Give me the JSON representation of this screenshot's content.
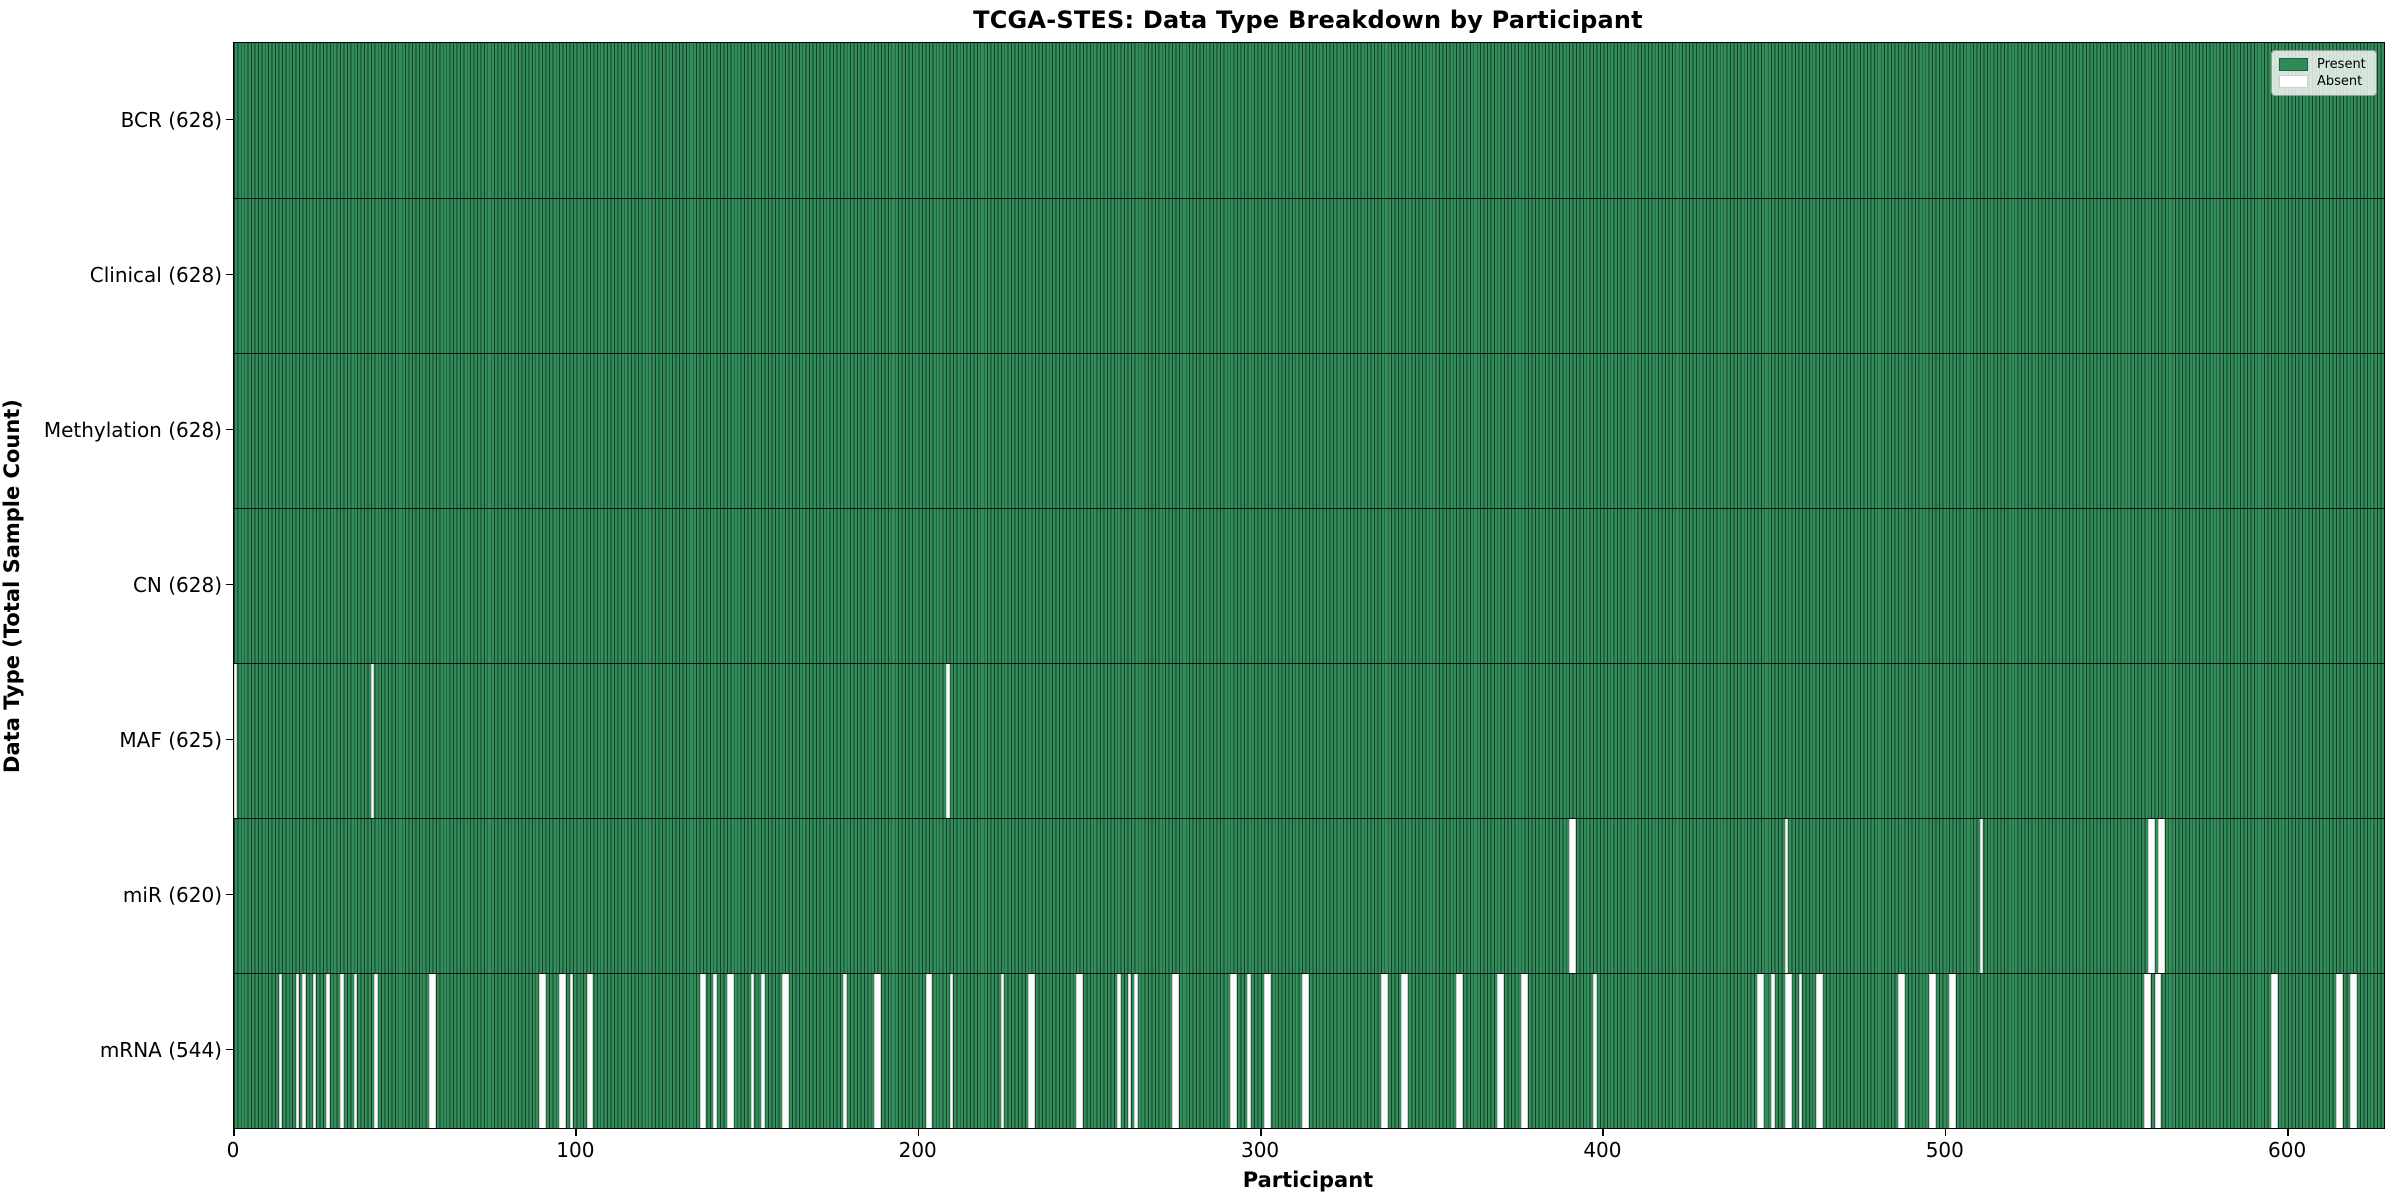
{
  "title": "TCGA-STES: Data Type Breakdown by Participant",
  "axes": {
    "x_label": "Participant",
    "y_label": "Data Type (Total Sample Count)"
  },
  "legend": {
    "items": [
      {
        "label": "Present",
        "color": "#2e8b57"
      },
      {
        "label": "Absent",
        "color": "#ffffff"
      }
    ]
  },
  "chart_data": {
    "type": "heatmap",
    "title": "TCGA-STES: Data Type Breakdown by Participant",
    "xlabel": "Participant",
    "ylabel": "Data Type (Total Sample Count)",
    "x_range": [
      0,
      628
    ],
    "x_ticks": [
      0,
      100,
      200,
      300,
      400,
      500,
      600
    ],
    "n_participants": 628,
    "legend_position": "upper right",
    "colors": {
      "present": "#2e8b57",
      "absent": "#ffffff",
      "edge": "#000000"
    },
    "rows": [
      {
        "label": "BCR (628)",
        "name": "BCR",
        "present_count": 628,
        "absent_runs": []
      },
      {
        "label": "Clinical (628)",
        "name": "Clinical",
        "present_count": 628,
        "absent_runs": []
      },
      {
        "label": "Methylation (628)",
        "name": "Methylation",
        "present_count": 628,
        "absent_runs": []
      },
      {
        "label": "CN (628)",
        "name": "CN",
        "present_count": 628,
        "absent_runs": []
      },
      {
        "label": "MAF (625)",
        "name": "MAF",
        "present_count": 625,
        "absent_runs": [
          [
            0,
            1
          ],
          [
            40,
            1
          ],
          [
            208,
            1
          ]
        ]
      },
      {
        "label": "miR (620)",
        "name": "miR",
        "present_count": 620,
        "absent_runs": [
          [
            390,
            2
          ],
          [
            453,
            1
          ],
          [
            510,
            1
          ],
          [
            559,
            2
          ],
          [
            562,
            2
          ]
        ]
      },
      {
        "label": "mRNA (544)",
        "name": "mRNA",
        "present_count": 544,
        "absent_runs": [
          [
            13,
            1
          ],
          [
            18,
            1
          ],
          [
            20,
            1
          ],
          [
            23,
            1
          ],
          [
            27,
            1
          ],
          [
            31,
            1
          ],
          [
            35,
            1
          ],
          [
            41,
            1
          ],
          [
            57,
            2
          ],
          [
            89,
            2
          ],
          [
            95,
            2
          ],
          [
            98,
            1
          ],
          [
            103,
            2
          ],
          [
            136,
            2
          ],
          [
            140,
            1
          ],
          [
            144,
            2
          ],
          [
            151,
            1
          ],
          [
            154,
            1
          ],
          [
            160,
            2
          ],
          [
            178,
            1
          ],
          [
            187,
            2
          ],
          [
            202,
            2
          ],
          [
            209,
            1
          ],
          [
            224,
            1
          ],
          [
            232,
            2
          ],
          [
            246,
            2
          ],
          [
            258,
            1
          ],
          [
            261,
            1
          ],
          [
            263,
            1
          ],
          [
            274,
            2
          ],
          [
            291,
            2
          ],
          [
            296,
            1
          ],
          [
            301,
            2
          ],
          [
            312,
            2
          ],
          [
            335,
            2
          ],
          [
            341,
            2
          ],
          [
            357,
            2
          ],
          [
            369,
            2
          ],
          [
            376,
            2
          ],
          [
            397,
            1
          ],
          [
            445,
            2
          ],
          [
            449,
            1
          ],
          [
            453,
            2
          ],
          [
            457,
            1
          ],
          [
            462,
            2
          ],
          [
            486,
            2
          ],
          [
            495,
            2
          ],
          [
            501,
            2
          ],
          [
            558,
            2
          ],
          [
            561,
            2
          ],
          [
            595,
            2
          ],
          [
            614,
            2
          ],
          [
            618,
            2
          ]
        ]
      }
    ]
  }
}
